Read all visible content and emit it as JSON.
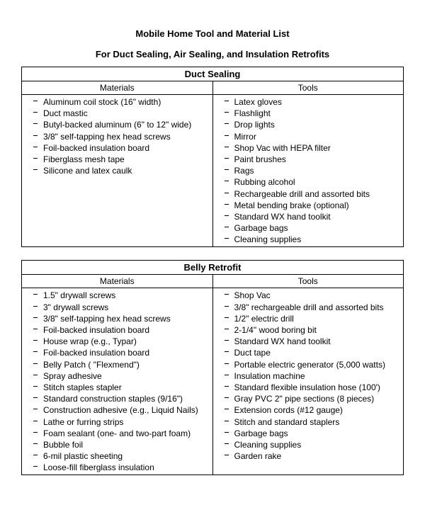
{
  "title": "Mobile Home Tool and Material List",
  "subtitle": "For Duct Sealing, Air Sealing, and Insulation Retrofits",
  "sections": [
    {
      "heading": "Duct Sealing",
      "materials_label": "Materials",
      "tools_label": "Tools",
      "materials": [
        "Aluminum coil stock (16\" width)",
        "Duct mastic",
        "Butyl-backed aluminum (6\" to 12\" wide)",
        "3/8\" self-tapping hex head screws",
        "Foil-backed insulation board",
        "Fiberglass mesh tape",
        "Silicone and latex caulk"
      ],
      "tools": [
        "Latex gloves",
        "Flashlight",
        "Drop lights",
        "Mirror",
        "Shop Vac with HEPA filter",
        "Paint brushes",
        "Rags",
        "Rubbing alcohol",
        "Rechargeable drill and assorted bits",
        "Metal bending brake (optional)",
        "Standard WX hand toolkit",
        "Garbage bags",
        "Cleaning supplies"
      ]
    },
    {
      "heading": "Belly Retrofit",
      "materials_label": "Materials",
      "tools_label": "Tools",
      "materials": [
        "1.5\" drywall screws",
        "3\" drywall screws",
        "3/8\" self-tapping hex head screws",
        "Foil-backed insulation board",
        "House wrap (e.g., Typar)",
        "Foil-backed insulation board",
        "Belly Patch ( \"Flexmend\")",
        "Spray adhesive",
        "Stitch staples stapler",
        "Standard construction staples (9/16\")",
        "Construction adhesive (e.g., Liquid Nails)",
        "Lathe or furring strips",
        "Foam sealant (one- and two-part foam)",
        "Bubble foil",
        "6-mil plastic sheeting",
        "Loose-fill fiberglass insulation"
      ],
      "tools": [
        "Shop Vac",
        "3/8\" rechargeable drill and assorted bits",
        "1/2\" electric drill",
        "2-1/4\" wood boring bit",
        "Standard WX hand toolkit",
        "Duct tape",
        "Portable electric generator (5,000 watts)",
        "Insulation machine",
        "Standard flexible insulation hose (100')",
        "Gray PVC 2\" pipe sections (8 pieces)",
        "Extension cords (#12 gauge)",
        "Stitch and standard staplers",
        "Garbage bags",
        "Cleaning supplies",
        "Garden rake"
      ]
    }
  ]
}
